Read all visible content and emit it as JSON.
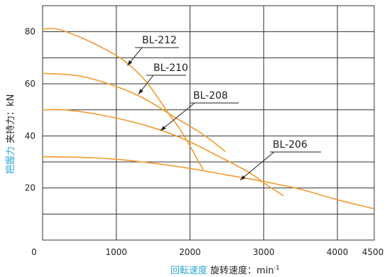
{
  "chart_data": {
    "type": "line",
    "xlim": [
      0,
      4500
    ],
    "ylim": [
      0,
      90
    ],
    "x_ticks": [
      "0",
      "1000",
      "2000",
      "3000",
      "4000",
      "4500"
    ],
    "y_ticks": [
      "20",
      "40",
      "60",
      "80"
    ],
    "grid": true,
    "series_color": "#f39a2e",
    "series": [
      {
        "name": "BL-212",
        "x": [
          0,
          200,
          500,
          800,
          1100,
          1400,
          1700,
          1900,
          2100,
          2180
        ],
        "y": [
          81,
          81,
          78,
          74,
          69,
          61,
          49,
          41,
          31,
          27
        ]
      },
      {
        "name": "BL-210",
        "x": [
          0,
          500,
          1000,
          1400,
          1800,
          2100,
          2300,
          2480
        ],
        "y": [
          64,
          63,
          59,
          54,
          47,
          42,
          38,
          34
        ]
      },
      {
        "name": "BL-208",
        "x": [
          0,
          300,
          800,
          1400,
          1900,
          2400,
          2800,
          3050,
          3270
        ],
        "y": [
          50,
          50,
          48,
          44,
          39,
          32,
          26,
          21,
          17
        ]
      },
      {
        "name": "BL-206",
        "x": [
          0,
          500,
          1000,
          1500,
          2000,
          2500,
          3000,
          3500,
          4000,
          4500
        ],
        "y": [
          32,
          31.8,
          31,
          29.5,
          27.5,
          25,
          22.5,
          19.5,
          15.5,
          12
        ]
      }
    ],
    "xlabel": {
      "primary": "回転速度",
      "secondary": "旋转速度：min",
      "sup": "-1"
    },
    "ylabel": {
      "primary": "把握力",
      "secondary": "夹持力：kN"
    }
  }
}
